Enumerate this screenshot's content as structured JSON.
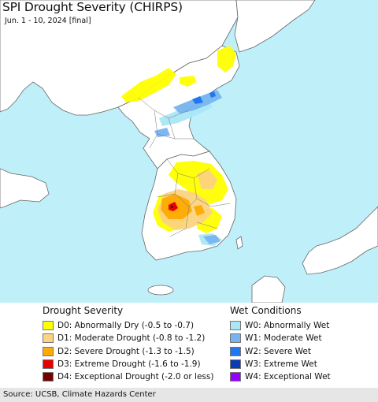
{
  "header": {
    "title": "SPI Drought Severity (CHIRPS)",
    "subtitle": "Jun. 1 - 10, 2024 [final]"
  },
  "map": {
    "colors": {
      "sea": "#bff0fa",
      "land": "#ffffff",
      "border": "#666666"
    }
  },
  "legend": {
    "drought": {
      "title": "Drought Severity",
      "items": [
        {
          "label": "D0: Abnormally Dry (-0.5 to -0.7)",
          "color": "#ffff00"
        },
        {
          "label": "D1: Moderate Drought (-0.8 to -1.2)",
          "color": "#fcd37f"
        },
        {
          "label": "D2: Severe Drought (-1.3 to -1.5)",
          "color": "#ffaa00"
        },
        {
          "label": "D3: Extreme Drought (-1.6 to -1.9)",
          "color": "#e60000"
        },
        {
          "label": "D4: Exceptional Drought (-2.0 or less)",
          "color": "#730000"
        }
      ]
    },
    "wet": {
      "title": "Wet Conditions",
      "items": [
        {
          "label": "W0: Abnormally Wet",
          "color": "#aae6f5"
        },
        {
          "label": "W1: Moderate Wet",
          "color": "#78b4f0"
        },
        {
          "label": "W2: Severe Wet",
          "color": "#1e78f0"
        },
        {
          "label": "W3: Extreme Wet",
          "color": "#0a3cb4"
        },
        {
          "label": "W4: Exceptional Wet",
          "color": "#9600ff"
        }
      ]
    }
  },
  "footer": {
    "source": "Source: UCSB, Climate Hazards Center"
  }
}
